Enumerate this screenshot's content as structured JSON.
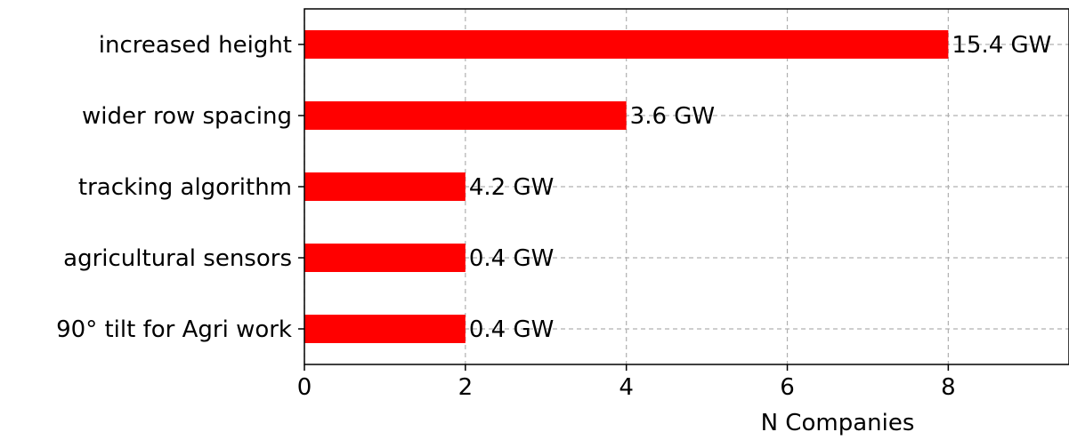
{
  "chart_data": {
    "type": "bar",
    "orientation": "horizontal",
    "categories": [
      "increased height",
      "wider row spacing",
      "tracking algorithm",
      "agricultural sensors",
      "90° tilt for Agri work"
    ],
    "values": [
      8,
      4,
      2,
      2,
      2
    ],
    "bar_labels": [
      "15.4 GW",
      "3.6 GW",
      "4.2 GW",
      "0.4 GW",
      "0.4 GW"
    ],
    "title": "",
    "xlabel": "N Companies",
    "ylabel": "",
    "xlim": [
      0,
      9.5
    ],
    "xticks": [
      "0",
      "2",
      "4",
      "6",
      "8"
    ],
    "grid": true,
    "bar_color": "#ff0000"
  }
}
